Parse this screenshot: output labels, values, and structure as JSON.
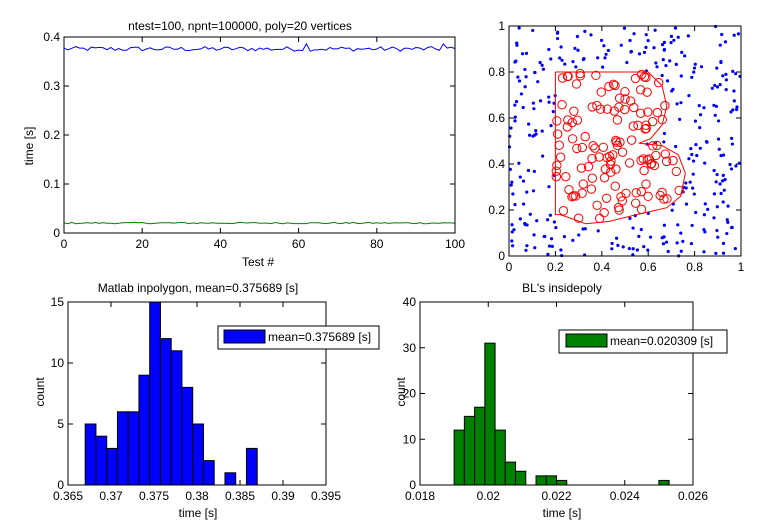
{
  "chart_data": [
    {
      "type": "line",
      "title": "ntest=100, npnt=100000, poly=20 vertices",
      "xlabel": "Test #",
      "ylabel": "time [s]",
      "xlim": [
        0,
        100
      ],
      "ylim": [
        0,
        0.4
      ],
      "xticks": [
        0,
        20,
        40,
        60,
        80,
        100
      ],
      "yticks": [
        0,
        0.1,
        0.2,
        0.3,
        0.4
      ],
      "series": [
        {
          "color": "#0000ff",
          "mean": 0.375689,
          "min": 0.367,
          "max": 0.386
        },
        {
          "color": "#008000",
          "mean": 0.020309,
          "min": 0.019,
          "max": 0.025
        }
      ]
    },
    {
      "type": "scatter",
      "title": "",
      "xlim": [
        0,
        1
      ],
      "ylim": [
        0,
        1
      ],
      "xticks": [
        0,
        0.2,
        0.4,
        0.6,
        0.8,
        1
      ],
      "yticks": [
        0,
        0.2,
        0.4,
        0.6,
        0.8,
        1
      ],
      "polygon": [
        [
          0.2,
          0.8
        ],
        [
          0.6,
          0.8
        ],
        [
          0.66,
          0.74
        ],
        [
          0.68,
          0.65
        ],
        [
          0.66,
          0.57
        ],
        [
          0.61,
          0.51
        ],
        [
          0.56,
          0.49
        ],
        [
          0.66,
          0.48
        ],
        [
          0.73,
          0.44
        ],
        [
          0.76,
          0.36
        ],
        [
          0.74,
          0.26
        ],
        [
          0.68,
          0.21
        ],
        [
          0.55,
          0.18
        ],
        [
          0.43,
          0.15
        ],
        [
          0.33,
          0.14
        ],
        [
          0.25,
          0.17
        ],
        [
          0.22,
          0.18
        ],
        [
          0.2,
          0.18
        ],
        [
          0.2,
          0.45
        ],
        [
          0.2,
          0.8
        ]
      ],
      "polygon_color": "#ff0000",
      "inside_color": "#ff0000",
      "outside_color": "#0000ff"
    },
    {
      "type": "bar",
      "title": "Matlab inpolygon, mean=0.375689 [s]",
      "xlabel": "time [s]",
      "ylabel": "count",
      "legend": "mean=0.375689 [s]",
      "color": "#0000ff",
      "xlim": [
        0.365,
        0.395
      ],
      "ylim": [
        0,
        15
      ],
      "xticks": [
        0.365,
        0.37,
        0.375,
        0.38,
        0.385,
        0.39,
        0.395
      ],
      "yticks": [
        0,
        5,
        10,
        15
      ],
      "bin_edges": [
        0.367,
        0.36825,
        0.3695,
        0.37075,
        0.372,
        0.37325,
        0.3745,
        0.37575,
        0.377,
        0.37825,
        0.3795,
        0.38075,
        0.382,
        0.38325,
        0.3845,
        0.38575,
        0.387
      ],
      "counts": [
        5,
        4,
        3,
        6,
        6,
        9,
        15,
        12,
        11,
        8,
        5,
        2,
        0,
        1,
        0,
        3
      ]
    },
    {
      "type": "bar",
      "title": "BL's insidepoly",
      "xlabel": "time [s]",
      "ylabel": "count",
      "legend": "mean=0.020309 [s]",
      "color": "#008000",
      "xlim": [
        0.018,
        0.026
      ],
      "ylim": [
        0,
        40
      ],
      "xticks": [
        0.018,
        0.02,
        0.022,
        0.024,
        0.026
      ],
      "yticks": [
        0,
        10,
        20,
        30,
        40
      ],
      "bin_edges": [
        0.019,
        0.0193,
        0.0196,
        0.0199,
        0.0202,
        0.0205,
        0.0208,
        0.0211,
        0.0214,
        0.0217,
        0.022,
        0.0223,
        0.0226,
        0.0229,
        0.0232,
        0.0235,
        0.0238,
        0.0241,
        0.0244,
        0.0247,
        0.025,
        0.0253
      ],
      "counts": [
        12,
        15,
        17,
        31,
        12,
        5,
        3,
        0,
        2,
        2,
        1,
        0,
        0,
        0,
        0,
        0,
        0,
        0,
        0,
        0,
        1
      ]
    }
  ]
}
